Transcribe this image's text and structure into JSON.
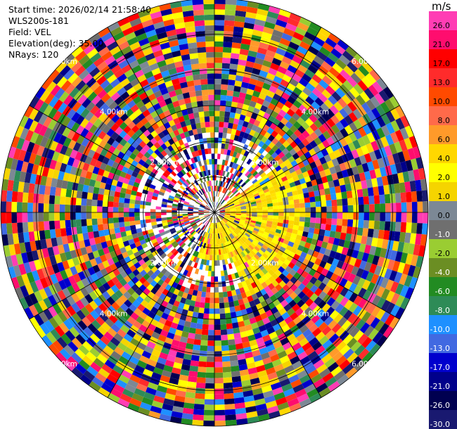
{
  "header": {
    "start_time": "Start time: 2026/02/14 21:58:40",
    "instrument": "WLS200s-181",
    "field": "Field: VEL",
    "elevation": "Elevation(deg): 35.00",
    "nrays": "NRays: 120"
  },
  "colorbar": {
    "unit": "m/s",
    "bins": [
      {
        "label": "26.0",
        "color": "#ff3db4"
      },
      {
        "label": "21.0",
        "color": "#ff0d6e"
      },
      {
        "label": "17.0",
        "color": "#ff0000"
      },
      {
        "label": "13.0",
        "color": "#ff2b2b"
      },
      {
        "label": "10.0",
        "color": "#ff4a00"
      },
      {
        "label": "8.0",
        "color": "#ff6a4a"
      },
      {
        "label": "6.0",
        "color": "#ff9a2a"
      },
      {
        "label": "4.0",
        "color": "#ffd700"
      },
      {
        "label": "2.0",
        "color": "#ffff00"
      },
      {
        "label": "1.0",
        "color": "#f5d400"
      },
      {
        "label": "0.0",
        "color": "#7c8895"
      },
      {
        "label": "-1.0",
        "color": "#6f6f6f"
      },
      {
        "label": "-2.0",
        "color": "#9acd32"
      },
      {
        "label": "-4.0",
        "color": "#6b8e23"
      },
      {
        "label": "-6.0",
        "color": "#228b22"
      },
      {
        "label": "-8.0",
        "color": "#2e8b57"
      },
      {
        "label": "-10.0",
        "color": "#1e90ff"
      },
      {
        "label": "-13.0",
        "color": "#4169e1"
      },
      {
        "label": "-17.0",
        "color": "#0000cd"
      },
      {
        "label": "-21.0",
        "color": "#00008b"
      },
      {
        "label": "-26.0",
        "color": "#000050"
      },
      {
        "label": "-30.0",
        "color": "#191970"
      }
    ]
  },
  "chart_data": {
    "type": "heatmap",
    "projection": "polar (PPI)",
    "field": "VEL",
    "units": "m/s",
    "nrays": 120,
    "elevation_deg": 35.0,
    "max_range_km": 6.0,
    "color_scale": [
      -30.0,
      -26.0,
      -21.0,
      -17.0,
      -13.0,
      -10.0,
      -8.0,
      -6.0,
      -4.0,
      -2.0,
      -1.0,
      0.0,
      1.0,
      2.0,
      4.0,
      6.0,
      8.0,
      10.0,
      13.0,
      17.0,
      21.0,
      26.0
    ],
    "range_ring_labels": [
      "2.00km",
      "4.00km",
      "6.00km"
    ],
    "range_labels": [
      {
        "r_km": 2,
        "quadrant": "NW",
        "label": "2.00km"
      },
      {
        "r_km": 2,
        "quadrant": "NE",
        "label": "2.00km"
      },
      {
        "r_km": 2,
        "quadrant": "SW",
        "label": "2.00km"
      },
      {
        "r_km": 2,
        "quadrant": "SE",
        "label": "2.00km"
      },
      {
        "r_km": 4,
        "quadrant": "NW",
        "label": "4.00km"
      },
      {
        "r_km": 4,
        "quadrant": "NE",
        "label": "4.00km"
      },
      {
        "r_km": 4,
        "quadrant": "SW",
        "label": "4.00km"
      },
      {
        "r_km": 4,
        "quadrant": "SE",
        "label": "4.00km"
      },
      {
        "r_km": 6,
        "quadrant": "NW",
        "label": "6.00km"
      },
      {
        "r_km": 6,
        "quadrant": "NE",
        "label": "6.00km"
      },
      {
        "r_km": 6,
        "quadrant": "SW",
        "label": "6.00km"
      },
      {
        "r_km": 6,
        "quadrant": "SE",
        "label": "6.00km"
      }
    ],
    "pattern": "coherent low positive velocities (0 to 4 m/s, yellow) east-southeast of radar within ~2.5 km; noise-dominated random velocities elsewhere"
  }
}
